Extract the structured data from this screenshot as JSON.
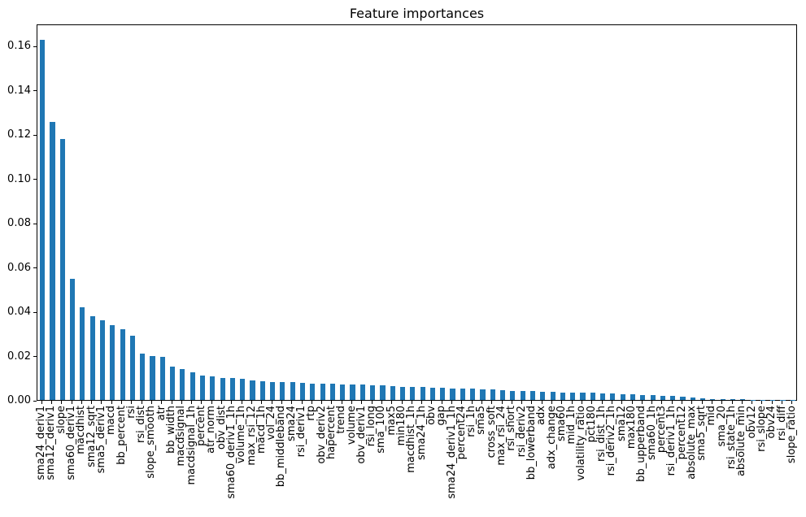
{
  "chart_data": {
    "type": "bar",
    "title": "Feature importances",
    "xlabel": "",
    "ylabel": "",
    "legend": null,
    "grid": false,
    "bar_color": "#1f77b4",
    "ylim": [
      0,
      0.17
    ],
    "yticks": [
      0.0,
      0.02,
      0.04,
      0.06,
      0.08,
      0.1,
      0.12,
      0.14,
      0.16
    ],
    "categories": [
      "sma24_deriv1",
      "sma12_deriv1",
      "slope",
      "sma60_deriv1",
      "macdhist",
      "sma12_sqrt",
      "sma5_deriv1",
      "macd",
      "bb_percent",
      "rsi",
      "rsi_dist",
      "slope_smooth",
      "atr",
      "bb_width",
      "macdsignal",
      "macdsignal_1h",
      "percent",
      "atr_norm",
      "obv_dist",
      "sma60_deriv1_1h",
      "volume_1h",
      "max_rsi_12",
      "macd_1h",
      "vol_24",
      "bb_middleband",
      "sma24",
      "rsi_deriv1",
      "rtp",
      "obv_deriv2",
      "hapercent",
      "trend",
      "volume",
      "obv_deriv1",
      "rsi_long",
      "sma_100",
      "max5",
      "min180",
      "macdhist_1h",
      "sma24_1h",
      "obv",
      "gap",
      "sma24_deriv1_1h",
      "percent24",
      "rsi_1h",
      "sma5",
      "cross_soft",
      "max_rsi_24",
      "rsi_short",
      "rsi_deriv2",
      "bb_lowerband",
      "adx",
      "adx_change",
      "sma60",
      "mid_1h",
      "volatility_ratio",
      "pct180",
      "rsi_dist_1h",
      "rsi_deriv2_1h",
      "sma12",
      "max180",
      "bb_upperband",
      "sma60_1h",
      "percent3",
      "rsi_deriv1_1h",
      "percent12",
      "absolute_max",
      "sma5_sqrt",
      "mid",
      "sma_20",
      "rsi_state_1h",
      "absolute_min",
      "obv12",
      "rsi_slope",
      "obv24",
      "rsi_diff",
      "slope_ratio"
    ],
    "values": [
      0.163,
      0.126,
      0.118,
      0.055,
      0.042,
      0.038,
      0.036,
      0.034,
      0.032,
      0.029,
      0.021,
      0.02,
      0.0195,
      0.015,
      0.014,
      0.0125,
      0.011,
      0.0105,
      0.01,
      0.01,
      0.0095,
      0.009,
      0.0085,
      0.008,
      0.008,
      0.008,
      0.0078,
      0.0075,
      0.0073,
      0.0072,
      0.007,
      0.007,
      0.007,
      0.0068,
      0.0065,
      0.0062,
      0.006,
      0.006,
      0.0058,
      0.0055,
      0.0055,
      0.0052,
      0.005,
      0.005,
      0.0048,
      0.0047,
      0.0045,
      0.0042,
      0.004,
      0.004,
      0.0038,
      0.0036,
      0.0035,
      0.0034,
      0.0033,
      0.0032,
      0.003,
      0.0028,
      0.0026,
      0.0024,
      0.0022,
      0.0021,
      0.002,
      0.0018,
      0.0016,
      0.0012,
      0.0008,
      0.0004,
      0.0003,
      0.0002,
      0.0002,
      0.0001,
      0.0001,
      0.0001,
      5e-05,
      3e-05
    ]
  }
}
